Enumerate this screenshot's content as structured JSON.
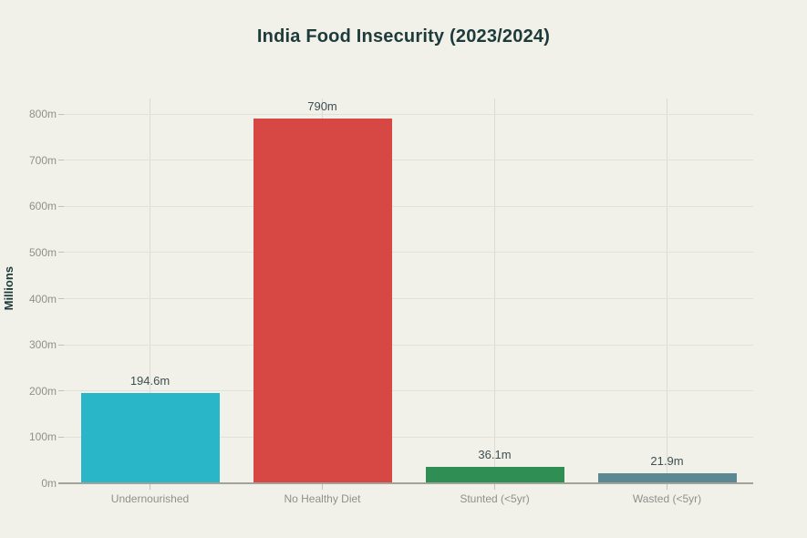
{
  "page": {
    "background": "#f1f0e9"
  },
  "chart_data": {
    "type": "bar",
    "title": "India Food Insecurity (2023/2024)",
    "xlabel": "",
    "ylabel": "Millions",
    "categories": [
      "Undernourished",
      "No Healthy Diet",
      "Stunted (<5yr)",
      "Wasted (<5yr)"
    ],
    "values": [
      194.6,
      790,
      36.1,
      21.9
    ],
    "value_labels": [
      "194.6m",
      "790m",
      "36.1m",
      "21.9m"
    ],
    "bar_colors": [
      "#29b6c8",
      "#d74744",
      "#2f8e53",
      "#5c8894"
    ],
    "ylim": [
      0,
      800
    ],
    "y_tick_step": 100,
    "y_tick_labels": [
      "0m",
      "100m",
      "200m",
      "300m",
      "400m",
      "500m",
      "600m",
      "700m",
      "800m"
    ],
    "grid": true,
    "legend": false
  },
  "style_colors": {
    "title": "#1d3b3b",
    "axis_title": "#1d3b3b",
    "tick_label": "#8f918c",
    "value_label": "#3d5052",
    "h_gridline": "#e3e2d9",
    "v_gridline": "#dcdbd3",
    "axis_line": "#a2a29b",
    "tick_mark": "#c2c2bb"
  }
}
